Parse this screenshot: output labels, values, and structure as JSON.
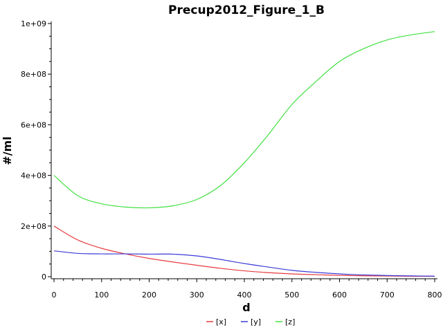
{
  "chart_data": {
    "type": "line",
    "title": "Precup2012_Figure_1_B",
    "xlabel": "d",
    "ylabel": "#/ml",
    "xlim": [
      0,
      800
    ],
    "ylim": [
      0,
      1000000000
    ],
    "x_ticks": [
      "0",
      "100",
      "200",
      "300",
      "400",
      "500",
      "600",
      "700",
      "800"
    ],
    "x_tick_values": [
      0,
      100,
      200,
      300,
      400,
      500,
      600,
      700,
      800
    ],
    "y_ticks": [
      "0",
      "2e+08",
      "4e+08",
      "6e+08",
      "8e+08",
      "1e+09"
    ],
    "y_tick_values": [
      0,
      200000000,
      400000000,
      600000000,
      800000000,
      1000000000
    ],
    "grid": false,
    "legend_position": "bottom-center",
    "x": [
      0,
      50,
      100,
      150,
      200,
      250,
      300,
      350,
      400,
      450,
      500,
      550,
      600,
      650,
      700,
      750,
      800
    ],
    "series": [
      {
        "name": "[x]",
        "color": "#e8393e",
        "values": [
          200000000,
          145000000,
          112000000,
          90000000,
          72000000,
          58000000,
          45000000,
          33000000,
          23000000,
          16000000,
          11000000,
          8000000,
          5000000,
          3500000,
          2500000,
          1800000,
          1200000
        ]
      },
      {
        "name": "[y]",
        "color": "#3a3ad6",
        "values": [
          102000000,
          92000000,
          90000000,
          90000000,
          89000000,
          89000000,
          82000000,
          68000000,
          52000000,
          38000000,
          25000000,
          17000000,
          11000000,
          7000000,
          4500000,
          3000000,
          2000000
        ]
      },
      {
        "name": "[z]",
        "color": "#40e040",
        "values": [
          400000000,
          320000000,
          288000000,
          275000000,
          272000000,
          280000000,
          305000000,
          360000000,
          450000000,
          560000000,
          680000000,
          770000000,
          850000000,
          900000000,
          935000000,
          955000000,
          968000000
        ]
      }
    ]
  }
}
